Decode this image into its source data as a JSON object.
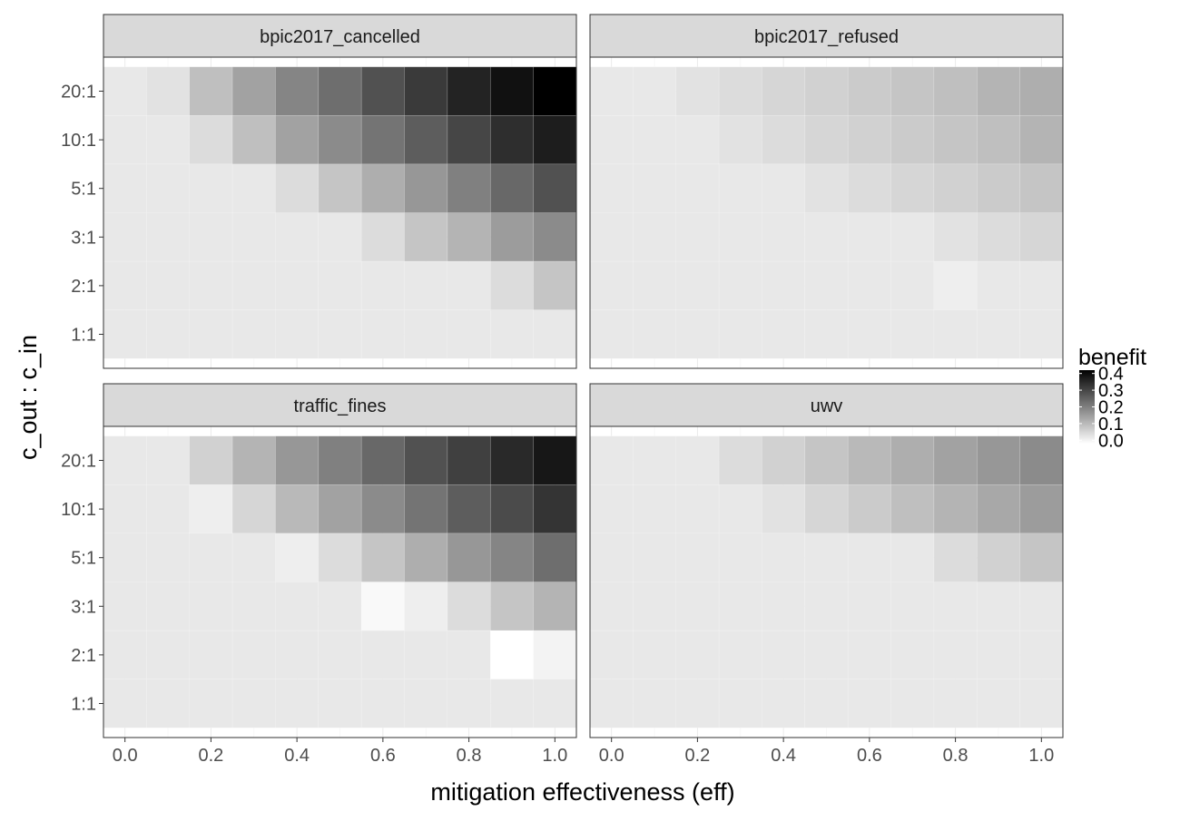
{
  "chart_data": {
    "type": "heatmap",
    "xlabel": "mitigation effectiveness (eff)",
    "ylabel": "c_out : c_in",
    "x": [
      0.0,
      0.1,
      0.2,
      0.3,
      0.4,
      0.5,
      0.6,
      0.7,
      0.8,
      0.9,
      1.0
    ],
    "x_ticks": [
      "0.0",
      "0.2",
      "0.4",
      "0.6",
      "0.8",
      "1.0"
    ],
    "y_categories": [
      "1:1",
      "2:1",
      "3:1",
      "5:1",
      "10:1",
      "20:1"
    ],
    "xlim": [
      -0.05,
      1.05
    ],
    "grid": true,
    "legend": {
      "title": "benefit",
      "position": "right",
      "range": [
        -0.02,
        0.42
      ],
      "ticks": [
        "0.0",
        "0.1",
        "0.2",
        "0.3",
        "0.4"
      ],
      "tick_values": [
        0.0,
        0.1,
        0.2,
        0.3,
        0.4
      ],
      "low_color": "#ffffff",
      "high_color": "#000000"
    },
    "panels": [
      {
        "title": "bpic2017_cancelled",
        "rows": [
          {
            "y": "20:1",
            "values": [
              0.02,
              0.03,
              0.09,
              0.14,
              0.19,
              0.23,
              0.28,
              0.32,
              0.36,
              0.39,
              0.42
            ]
          },
          {
            "y": "10:1",
            "values": [
              0.02,
              0.02,
              0.04,
              0.09,
              0.14,
              0.18,
              0.22,
              0.26,
              0.3,
              0.34,
              0.37
            ]
          },
          {
            "y": "5:1",
            "values": [
              0.02,
              0.02,
              0.02,
              0.02,
              0.04,
              0.08,
              0.12,
              0.16,
              0.2,
              0.24,
              0.28
            ]
          },
          {
            "y": "3:1",
            "values": [
              0.02,
              0.02,
              0.02,
              0.02,
              0.02,
              0.02,
              0.04,
              0.08,
              0.11,
              0.15,
              0.18
            ]
          },
          {
            "y": "2:1",
            "values": [
              0.02,
              0.02,
              0.02,
              0.02,
              0.02,
              0.02,
              0.02,
              0.02,
              0.02,
              0.04,
              0.08
            ]
          },
          {
            "y": "1:1",
            "values": [
              0.02,
              0.02,
              0.02,
              0.02,
              0.02,
              0.02,
              0.02,
              0.02,
              0.02,
              0.02,
              0.02
            ]
          }
        ]
      },
      {
        "title": "bpic2017_refused",
        "rows": [
          {
            "y": "20:1",
            "values": [
              0.02,
              0.02,
              0.03,
              0.04,
              0.05,
              0.06,
              0.07,
              0.08,
              0.09,
              0.11,
              0.12
            ]
          },
          {
            "y": "10:1",
            "values": [
              0.02,
              0.02,
              0.02,
              0.03,
              0.04,
              0.05,
              0.06,
              0.07,
              0.08,
              0.09,
              0.11
            ]
          },
          {
            "y": "5:1",
            "values": [
              0.02,
              0.02,
              0.02,
              0.02,
              0.02,
              0.03,
              0.04,
              0.05,
              0.06,
              0.07,
              0.08
            ]
          },
          {
            "y": "3:1",
            "values": [
              0.02,
              0.02,
              0.02,
              0.02,
              0.02,
              0.02,
              0.02,
              0.02,
              0.03,
              0.04,
              0.05
            ]
          },
          {
            "y": "2:1",
            "values": [
              0.02,
              0.02,
              0.02,
              0.02,
              0.02,
              0.02,
              0.02,
              0.02,
              0.01,
              0.02,
              0.02
            ]
          },
          {
            "y": "1:1",
            "values": [
              0.02,
              0.02,
              0.02,
              0.02,
              0.02,
              0.02,
              0.02,
              0.02,
              0.02,
              0.02,
              0.02
            ]
          }
        ]
      },
      {
        "title": "traffic_fines",
        "rows": [
          {
            "y": "20:1",
            "values": [
              0.02,
              0.02,
              0.06,
              0.11,
              0.16,
              0.2,
              0.24,
              0.28,
              0.31,
              0.35,
              0.38
            ]
          },
          {
            "y": "10:1",
            "values": [
              0.02,
              0.02,
              0.01,
              0.05,
              0.1,
              0.14,
              0.18,
              0.22,
              0.26,
              0.29,
              0.33
            ]
          },
          {
            "y": "5:1",
            "values": [
              0.02,
              0.02,
              0.02,
              0.02,
              0.01,
              0.04,
              0.08,
              0.12,
              0.16,
              0.19,
              0.23
            ]
          },
          {
            "y": "3:1",
            "values": [
              0.02,
              0.02,
              0.02,
              0.02,
              0.02,
              0.02,
              -0.01,
              0.01,
              0.04,
              0.08,
              0.11
            ]
          },
          {
            "y": "2:1",
            "values": [
              0.02,
              0.02,
              0.02,
              0.02,
              0.02,
              0.02,
              0.02,
              0.02,
              0.02,
              -0.02,
              0.0
            ]
          },
          {
            "y": "1:1",
            "values": [
              0.02,
              0.02,
              0.02,
              0.02,
              0.02,
              0.02,
              0.02,
              0.02,
              0.02,
              0.02,
              0.02
            ]
          }
        ]
      },
      {
        "title": "uwv",
        "rows": [
          {
            "y": "20:1",
            "values": [
              0.02,
              0.02,
              0.02,
              0.04,
              0.06,
              0.08,
              0.1,
              0.12,
              0.14,
              0.16,
              0.18
            ]
          },
          {
            "y": "10:1",
            "values": [
              0.02,
              0.02,
              0.02,
              0.02,
              0.03,
              0.05,
              0.07,
              0.09,
              0.11,
              0.13,
              0.15
            ]
          },
          {
            "y": "5:1",
            "values": [
              0.02,
              0.02,
              0.02,
              0.02,
              0.02,
              0.02,
              0.02,
              0.02,
              0.04,
              0.06,
              0.08
            ]
          },
          {
            "y": "3:1",
            "values": [
              0.02,
              0.02,
              0.02,
              0.02,
              0.02,
              0.02,
              0.02,
              0.02,
              0.02,
              0.02,
              0.02
            ]
          },
          {
            "y": "2:1",
            "values": [
              0.02,
              0.02,
              0.02,
              0.02,
              0.02,
              0.02,
              0.02,
              0.02,
              0.02,
              0.02,
              0.02
            ]
          },
          {
            "y": "1:1",
            "values": [
              0.02,
              0.02,
              0.02,
              0.02,
              0.02,
              0.02,
              0.02,
              0.02,
              0.02,
              0.02,
              0.02
            ]
          }
        ]
      }
    ]
  }
}
